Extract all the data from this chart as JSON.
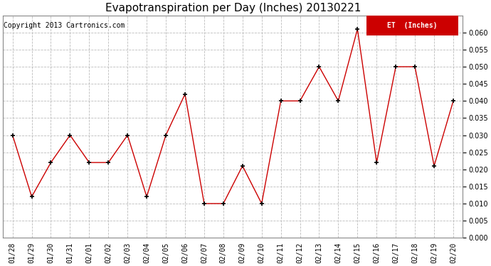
{
  "title": "Evapotranspiration per Day (Inches) 20130221",
  "copyright_text": "Copyright 2013 Cartronics.com",
  "legend_label": "ET  (Inches)",
  "dates": [
    "01/28",
    "01/29",
    "01/30",
    "01/31",
    "02/01",
    "02/02",
    "02/03",
    "02/04",
    "02/05",
    "02/06",
    "02/07",
    "02/08",
    "02/09",
    "02/10",
    "02/11",
    "02/12",
    "02/13",
    "02/14",
    "02/15",
    "02/16",
    "02/17",
    "02/18",
    "02/19",
    "02/20"
  ],
  "values": [
    0.03,
    0.012,
    0.022,
    0.03,
    0.022,
    0.022,
    0.03,
    0.012,
    0.03,
    0.042,
    0.01,
    0.01,
    0.021,
    0.01,
    0.04,
    0.04,
    0.05,
    0.04,
    0.061,
    0.022,
    0.05,
    0.05,
    0.021,
    0.04
  ],
  "line_color": "#cc0000",
  "marker": "+",
  "marker_color": "#000000",
  "grid_color": "#bbbbbb",
  "bg_color": "#ffffff",
  "ylim": [
    0.0,
    0.065
  ],
  "yticks": [
    0.0,
    0.005,
    0.01,
    0.015,
    0.02,
    0.025,
    0.03,
    0.035,
    0.04,
    0.045,
    0.05,
    0.055,
    0.06
  ],
  "title_fontsize": 11,
  "copyright_fontsize": 7,
  "tick_fontsize": 7,
  "legend_bg": "#cc0000",
  "legend_text_color": "#ffffff"
}
